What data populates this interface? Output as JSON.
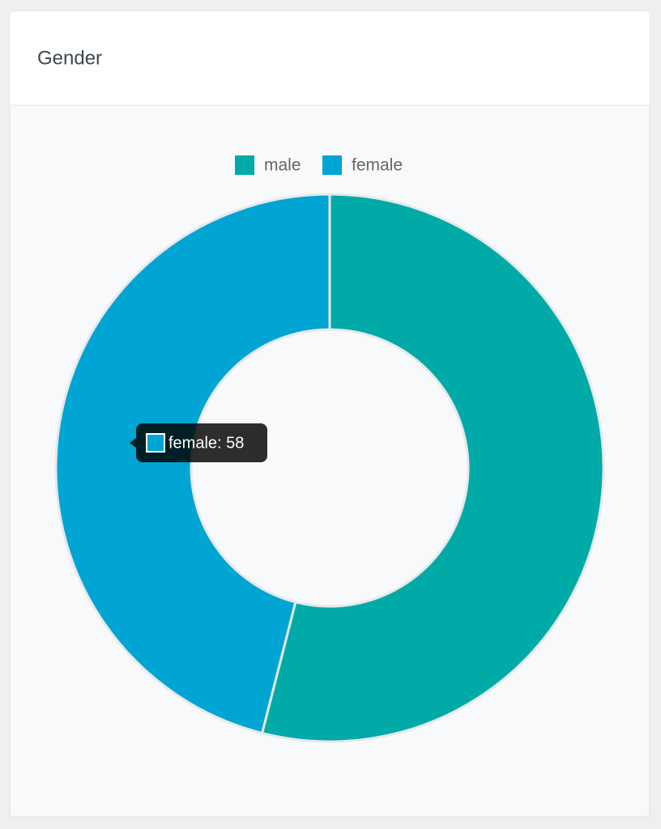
{
  "header": {
    "title": "Gender"
  },
  "chart_data": {
    "type": "doughnut",
    "categories": [
      "male",
      "female"
    ],
    "values": [
      68,
      58
    ],
    "colors": [
      "#00aaa7",
      "#00a5d4"
    ],
    "legend": "top",
    "tooltip": "female: 58"
  }
}
